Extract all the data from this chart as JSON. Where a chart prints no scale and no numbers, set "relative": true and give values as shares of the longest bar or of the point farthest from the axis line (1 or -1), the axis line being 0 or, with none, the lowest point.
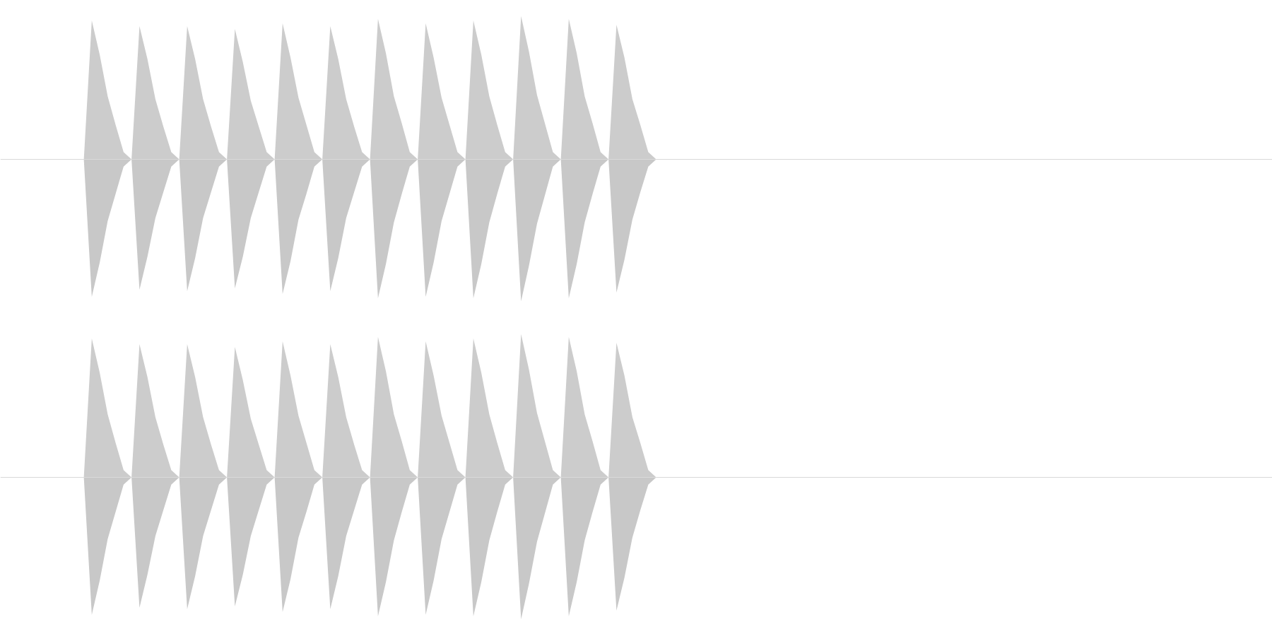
{
  "chart_data": [
    {
      "type": "area",
      "relative": true,
      "tick_labels": false,
      "categories": [
        null,
        null,
        null,
        null,
        null,
        null,
        null,
        null,
        null,
        null,
        null,
        null,
        null,
        null,
        null,
        null,
        null,
        null,
        null,
        null,
        null,
        null,
        null,
        null,
        null,
        null,
        null,
        null,
        null,
        null,
        null,
        null,
        null,
        null,
        null,
        null,
        null,
        null,
        null,
        null,
        null,
        null,
        null,
        null,
        null,
        null,
        null,
        null,
        null,
        null,
        null,
        null,
        null,
        null,
        null,
        null,
        null,
        null,
        null,
        null,
        null,
        null,
        null,
        null,
        null,
        null,
        null,
        null,
        null,
        null,
        null,
        null,
        null,
        null,
        null,
        null,
        null,
        null,
        null,
        null,
        null,
        null,
        null,
        null,
        null,
        null,
        null,
        null,
        null,
        null,
        null,
        null,
        null,
        null,
        null,
        null,
        null,
        null,
        null,
        null,
        null,
        null,
        null,
        null,
        null,
        null,
        null,
        null,
        null,
        null,
        null,
        null,
        null,
        null,
        null,
        null,
        null,
        null,
        null,
        null,
        null,
        null,
        null,
        null,
        null,
        null,
        null,
        null,
        null,
        null,
        null,
        null,
        null,
        null,
        null,
        null,
        null,
        null,
        null,
        null,
        null,
        null,
        null,
        null,
        null,
        null,
        null,
        null,
        null,
        null,
        null,
        null,
        null,
        null,
        null,
        null,
        null,
        null,
        null,
        null
      ],
      "series": [
        {
          "color": "#cccccc",
          "values": [
            0,
            0,
            0,
            0,
            0,
            0,
            0,
            0,
            0,
            0,
            0,
            0.97,
            0.73,
            0.44,
            0.24,
            0.05,
            0,
            0.93,
            0.7,
            0.42,
            0.23,
            0.05,
            0,
            0.93,
            0.7,
            0.42,
            0.23,
            0.05,
            0,
            0.91,
            0.68,
            0.41,
            0.23,
            0.05,
            0,
            0.95,
            0.71,
            0.43,
            0.24,
            0.05,
            0,
            0.93,
            0.7,
            0.42,
            0.23,
            0.05,
            0,
            0.98,
            0.74,
            0.44,
            0.25,
            0.05,
            0,
            0.95,
            0.71,
            0.43,
            0.24,
            0.05,
            0,
            0.97,
            0.73,
            0.44,
            0.24,
            0.05,
            0,
            1,
            0.75,
            0.45,
            0.25,
            0.05,
            0,
            0.98,
            0.74,
            0.44,
            0.25,
            0.05,
            0,
            0.94,
            0.71,
            0.42,
            0.24,
            0.05,
            0,
            0,
            0,
            0,
            0,
            0,
            0,
            0,
            0,
            0,
            0,
            0,
            0,
            0,
            0,
            0,
            0,
            0,
            0,
            0,
            0,
            0,
            0,
            0,
            0,
            0,
            0,
            0,
            0,
            0,
            0,
            0,
            0,
            0,
            0,
            0,
            0,
            0,
            0,
            0,
            0,
            0,
            0,
            0,
            0,
            0,
            0,
            0,
            0,
            0,
            0,
            0,
            0,
            0,
            0,
            0,
            0,
            0,
            0,
            0,
            0,
            0,
            0,
            0,
            0,
            0,
            0,
            0,
            0,
            0,
            0,
            0,
            0,
            0,
            0,
            0,
            0,
            0
          ]
        },
        {
          "color": "#c8c8c8",
          "values": [
            0,
            0,
            0,
            0,
            0,
            0,
            0,
            0,
            0,
            0,
            0,
            -0.96,
            -0.72,
            -0.43,
            -0.24,
            -0.05,
            0,
            -0.91,
            -0.68,
            -0.41,
            -0.23,
            -0.05,
            0,
            -0.92,
            -0.69,
            -0.41,
            -0.23,
            -0.05,
            0,
            -0.9,
            -0.68,
            -0.41,
            -0.23,
            -0.05,
            0,
            -0.94,
            -0.71,
            -0.42,
            -0.24,
            -0.05,
            0,
            -0.92,
            -0.69,
            -0.41,
            -0.23,
            -0.05,
            0,
            -0.97,
            -0.73,
            -0.44,
            -0.24,
            -0.05,
            0,
            -0.96,
            -0.72,
            -0.43,
            -0.24,
            -0.05,
            0,
            -0.97,
            -0.73,
            -0.44,
            -0.24,
            -0.05,
            0,
            -0.99,
            -0.74,
            -0.45,
            -0.25,
            -0.05,
            0,
            -0.97,
            -0.73,
            -0.44,
            -0.24,
            -0.05,
            0,
            -0.93,
            -0.7,
            -0.42,
            -0.23,
            -0.05,
            0,
            0,
            0,
            0,
            0,
            0,
            0,
            0,
            0,
            0,
            0,
            0,
            0,
            0,
            0,
            0,
            0,
            0,
            0,
            0,
            0,
            0,
            0,
            0,
            0,
            0,
            0,
            0,
            0,
            0,
            0,
            0,
            0,
            0,
            0,
            0,
            0,
            0,
            0,
            0,
            0,
            0,
            0,
            0,
            0,
            0,
            0,
            0,
            0,
            0,
            0,
            0,
            0,
            0,
            0,
            0,
            0,
            0,
            0,
            0,
            0,
            0,
            0,
            0,
            0,
            0,
            0,
            0,
            0,
            0,
            0,
            0,
            0,
            0,
            0,
            0,
            0,
            0
          ]
        }
      ]
    },
    {
      "type": "area",
      "relative": true,
      "tick_labels": false,
      "categories": [
        null,
        null,
        null,
        null,
        null,
        null,
        null,
        null,
        null,
        null,
        null,
        null,
        null,
        null,
        null,
        null,
        null,
        null,
        null,
        null,
        null,
        null,
        null,
        null,
        null,
        null,
        null,
        null,
        null,
        null,
        null,
        null,
        null,
        null,
        null,
        null,
        null,
        null,
        null,
        null,
        null,
        null,
        null,
        null,
        null,
        null,
        null,
        null,
        null,
        null,
        null,
        null,
        null,
        null,
        null,
        null,
        null,
        null,
        null,
        null,
        null,
        null,
        null,
        null,
        null,
        null,
        null,
        null,
        null,
        null,
        null,
        null,
        null,
        null,
        null,
        null,
        null,
        null,
        null,
        null,
        null,
        null,
        null,
        null,
        null,
        null,
        null,
        null,
        null,
        null,
        null,
        null,
        null,
        null,
        null,
        null,
        null,
        null,
        null,
        null,
        null,
        null,
        null,
        null,
        null,
        null,
        null,
        null,
        null,
        null,
        null,
        null,
        null,
        null,
        null,
        null,
        null,
        null,
        null,
        null,
        null,
        null,
        null,
        null,
        null,
        null,
        null,
        null,
        null,
        null,
        null,
        null,
        null,
        null,
        null,
        null,
        null,
        null,
        null,
        null,
        null,
        null,
        null,
        null,
        null,
        null,
        null,
        null,
        null,
        null,
        null,
        null,
        null,
        null,
        null,
        null,
        null,
        null,
        null,
        null
      ],
      "series": [
        {
          "color": "#cccccc",
          "values": [
            0,
            0,
            0,
            0,
            0,
            0,
            0,
            0,
            0,
            0,
            0,
            0.97,
            0.73,
            0.44,
            0.24,
            0.05,
            0,
            0.93,
            0.7,
            0.42,
            0.23,
            0.05,
            0,
            0.93,
            0.7,
            0.42,
            0.23,
            0.05,
            0,
            0.91,
            0.68,
            0.41,
            0.23,
            0.05,
            0,
            0.95,
            0.71,
            0.43,
            0.24,
            0.05,
            0,
            0.93,
            0.7,
            0.42,
            0.23,
            0.05,
            0,
            0.98,
            0.74,
            0.44,
            0.25,
            0.05,
            0,
            0.95,
            0.71,
            0.43,
            0.24,
            0.05,
            0,
            0.97,
            0.73,
            0.44,
            0.24,
            0.05,
            0,
            1,
            0.75,
            0.45,
            0.25,
            0.05,
            0,
            0.98,
            0.74,
            0.44,
            0.25,
            0.05,
            0,
            0.94,
            0.71,
            0.42,
            0.24,
            0.05,
            0,
            0,
            0,
            0,
            0,
            0,
            0,
            0,
            0,
            0,
            0,
            0,
            0,
            0,
            0,
            0,
            0,
            0,
            0,
            0,
            0,
            0,
            0,
            0,
            0,
            0,
            0,
            0,
            0,
            0,
            0,
            0,
            0,
            0,
            0,
            0,
            0,
            0,
            0,
            0,
            0,
            0,
            0,
            0,
            0,
            0,
            0,
            0,
            0,
            0,
            0,
            0,
            0,
            0,
            0,
            0,
            0,
            0,
            0,
            0,
            0,
            0,
            0,
            0,
            0,
            0,
            0,
            0,
            0,
            0,
            0,
            0,
            0,
            0,
            0,
            0,
            0,
            0
          ]
        },
        {
          "color": "#c8c8c8",
          "values": [
            0,
            0,
            0,
            0,
            0,
            0,
            0,
            0,
            0,
            0,
            0,
            -0.96,
            -0.72,
            -0.43,
            -0.24,
            -0.05,
            0,
            -0.91,
            -0.68,
            -0.41,
            -0.23,
            -0.05,
            0,
            -0.92,
            -0.69,
            -0.41,
            -0.23,
            -0.05,
            0,
            -0.9,
            -0.68,
            -0.41,
            -0.23,
            -0.05,
            0,
            -0.94,
            -0.71,
            -0.42,
            -0.24,
            -0.05,
            0,
            -0.92,
            -0.69,
            -0.41,
            -0.23,
            -0.05,
            0,
            -0.97,
            -0.73,
            -0.44,
            -0.24,
            -0.05,
            0,
            -0.96,
            -0.72,
            -0.43,
            -0.24,
            -0.05,
            0,
            -0.97,
            -0.73,
            -0.44,
            -0.24,
            -0.05,
            0,
            -0.99,
            -0.74,
            -0.45,
            -0.25,
            -0.05,
            0,
            -0.97,
            -0.73,
            -0.44,
            -0.24,
            -0.05,
            0,
            -0.93,
            -0.7,
            -0.42,
            -0.23,
            -0.05,
            0,
            0,
            0,
            0,
            0,
            0,
            0,
            0,
            0,
            0,
            0,
            0,
            0,
            0,
            0,
            0,
            0,
            0,
            0,
            0,
            0,
            0,
            0,
            0,
            0,
            0,
            0,
            0,
            0,
            0,
            0,
            0,
            0,
            0,
            0,
            0,
            0,
            0,
            0,
            0,
            0,
            0,
            0,
            0,
            0,
            0,
            0,
            0,
            0,
            0,
            0,
            0,
            0,
            0,
            0,
            0,
            0,
            0,
            0,
            0,
            0,
            0,
            0,
            0,
            0,
            0,
            0,
            0,
            0,
            0,
            0,
            0,
            0,
            0,
            0,
            0,
            0,
            0
          ]
        }
      ]
    }
  ]
}
